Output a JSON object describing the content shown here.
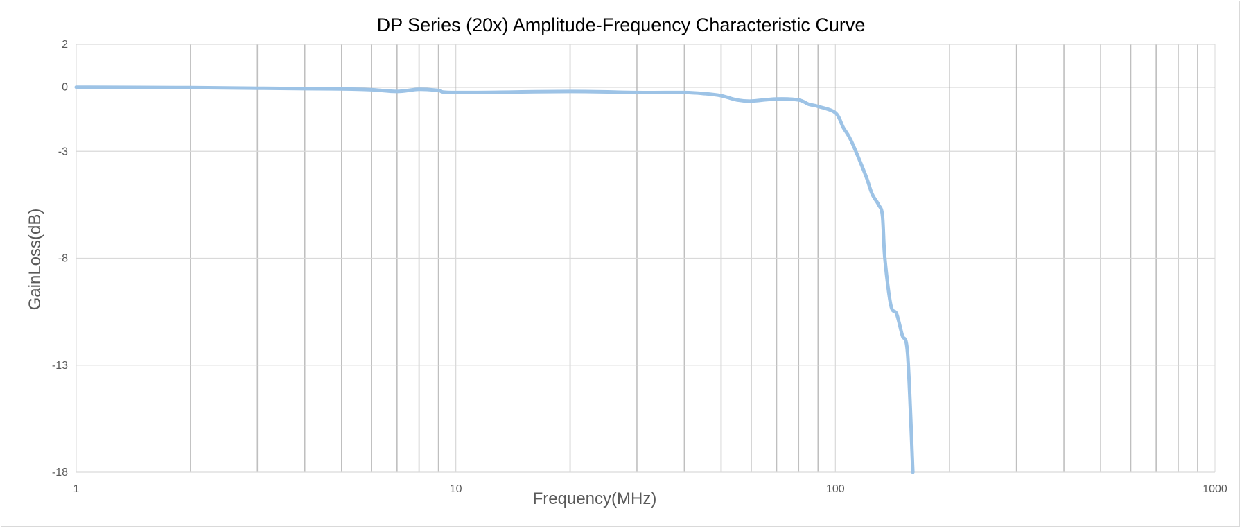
{
  "chart_data": {
    "type": "line",
    "title": "DP Series (20x) Amplitude-Frequency Characteristic Curve",
    "xlabel": "Frequency(MHz)",
    "ylabel": "GainLoss(dB)",
    "x_scale": "log",
    "xlim": [
      1,
      1000
    ],
    "ylim": [
      -18,
      2
    ],
    "x_tick_labels": [
      "1",
      "10",
      "100",
      "1000"
    ],
    "y_ticks": [
      2,
      0,
      -3,
      -8,
      -13,
      -18
    ],
    "y_tick_labels": [
      "2",
      "0",
      "-3",
      "-8",
      "-13",
      "-18"
    ],
    "grid": true,
    "legend": "none",
    "series": [
      {
        "color": "#9dc3e6",
        "x": [
          1,
          2,
          3,
          4,
          5,
          6,
          7,
          8,
          9,
          10,
          20,
          30,
          40,
          45,
          50,
          55,
          60,
          70,
          80,
          85,
          90,
          100,
          105,
          110,
          120,
          125,
          130,
          133,
          135,
          140,
          145,
          150,
          155,
          160
        ],
        "y": [
          0,
          -0.02,
          -0.05,
          -0.07,
          -0.08,
          -0.12,
          -0.2,
          -0.1,
          -0.15,
          -0.25,
          -0.2,
          -0.25,
          -0.25,
          -0.3,
          -0.4,
          -0.6,
          -0.65,
          -0.55,
          -0.6,
          -0.8,
          -0.9,
          -1.2,
          -1.9,
          -2.5,
          -4.1,
          -5,
          -5.5,
          -6,
          -8,
          -10.2,
          -10.6,
          -11.6,
          -12.5,
          -18
        ]
      }
    ]
  }
}
